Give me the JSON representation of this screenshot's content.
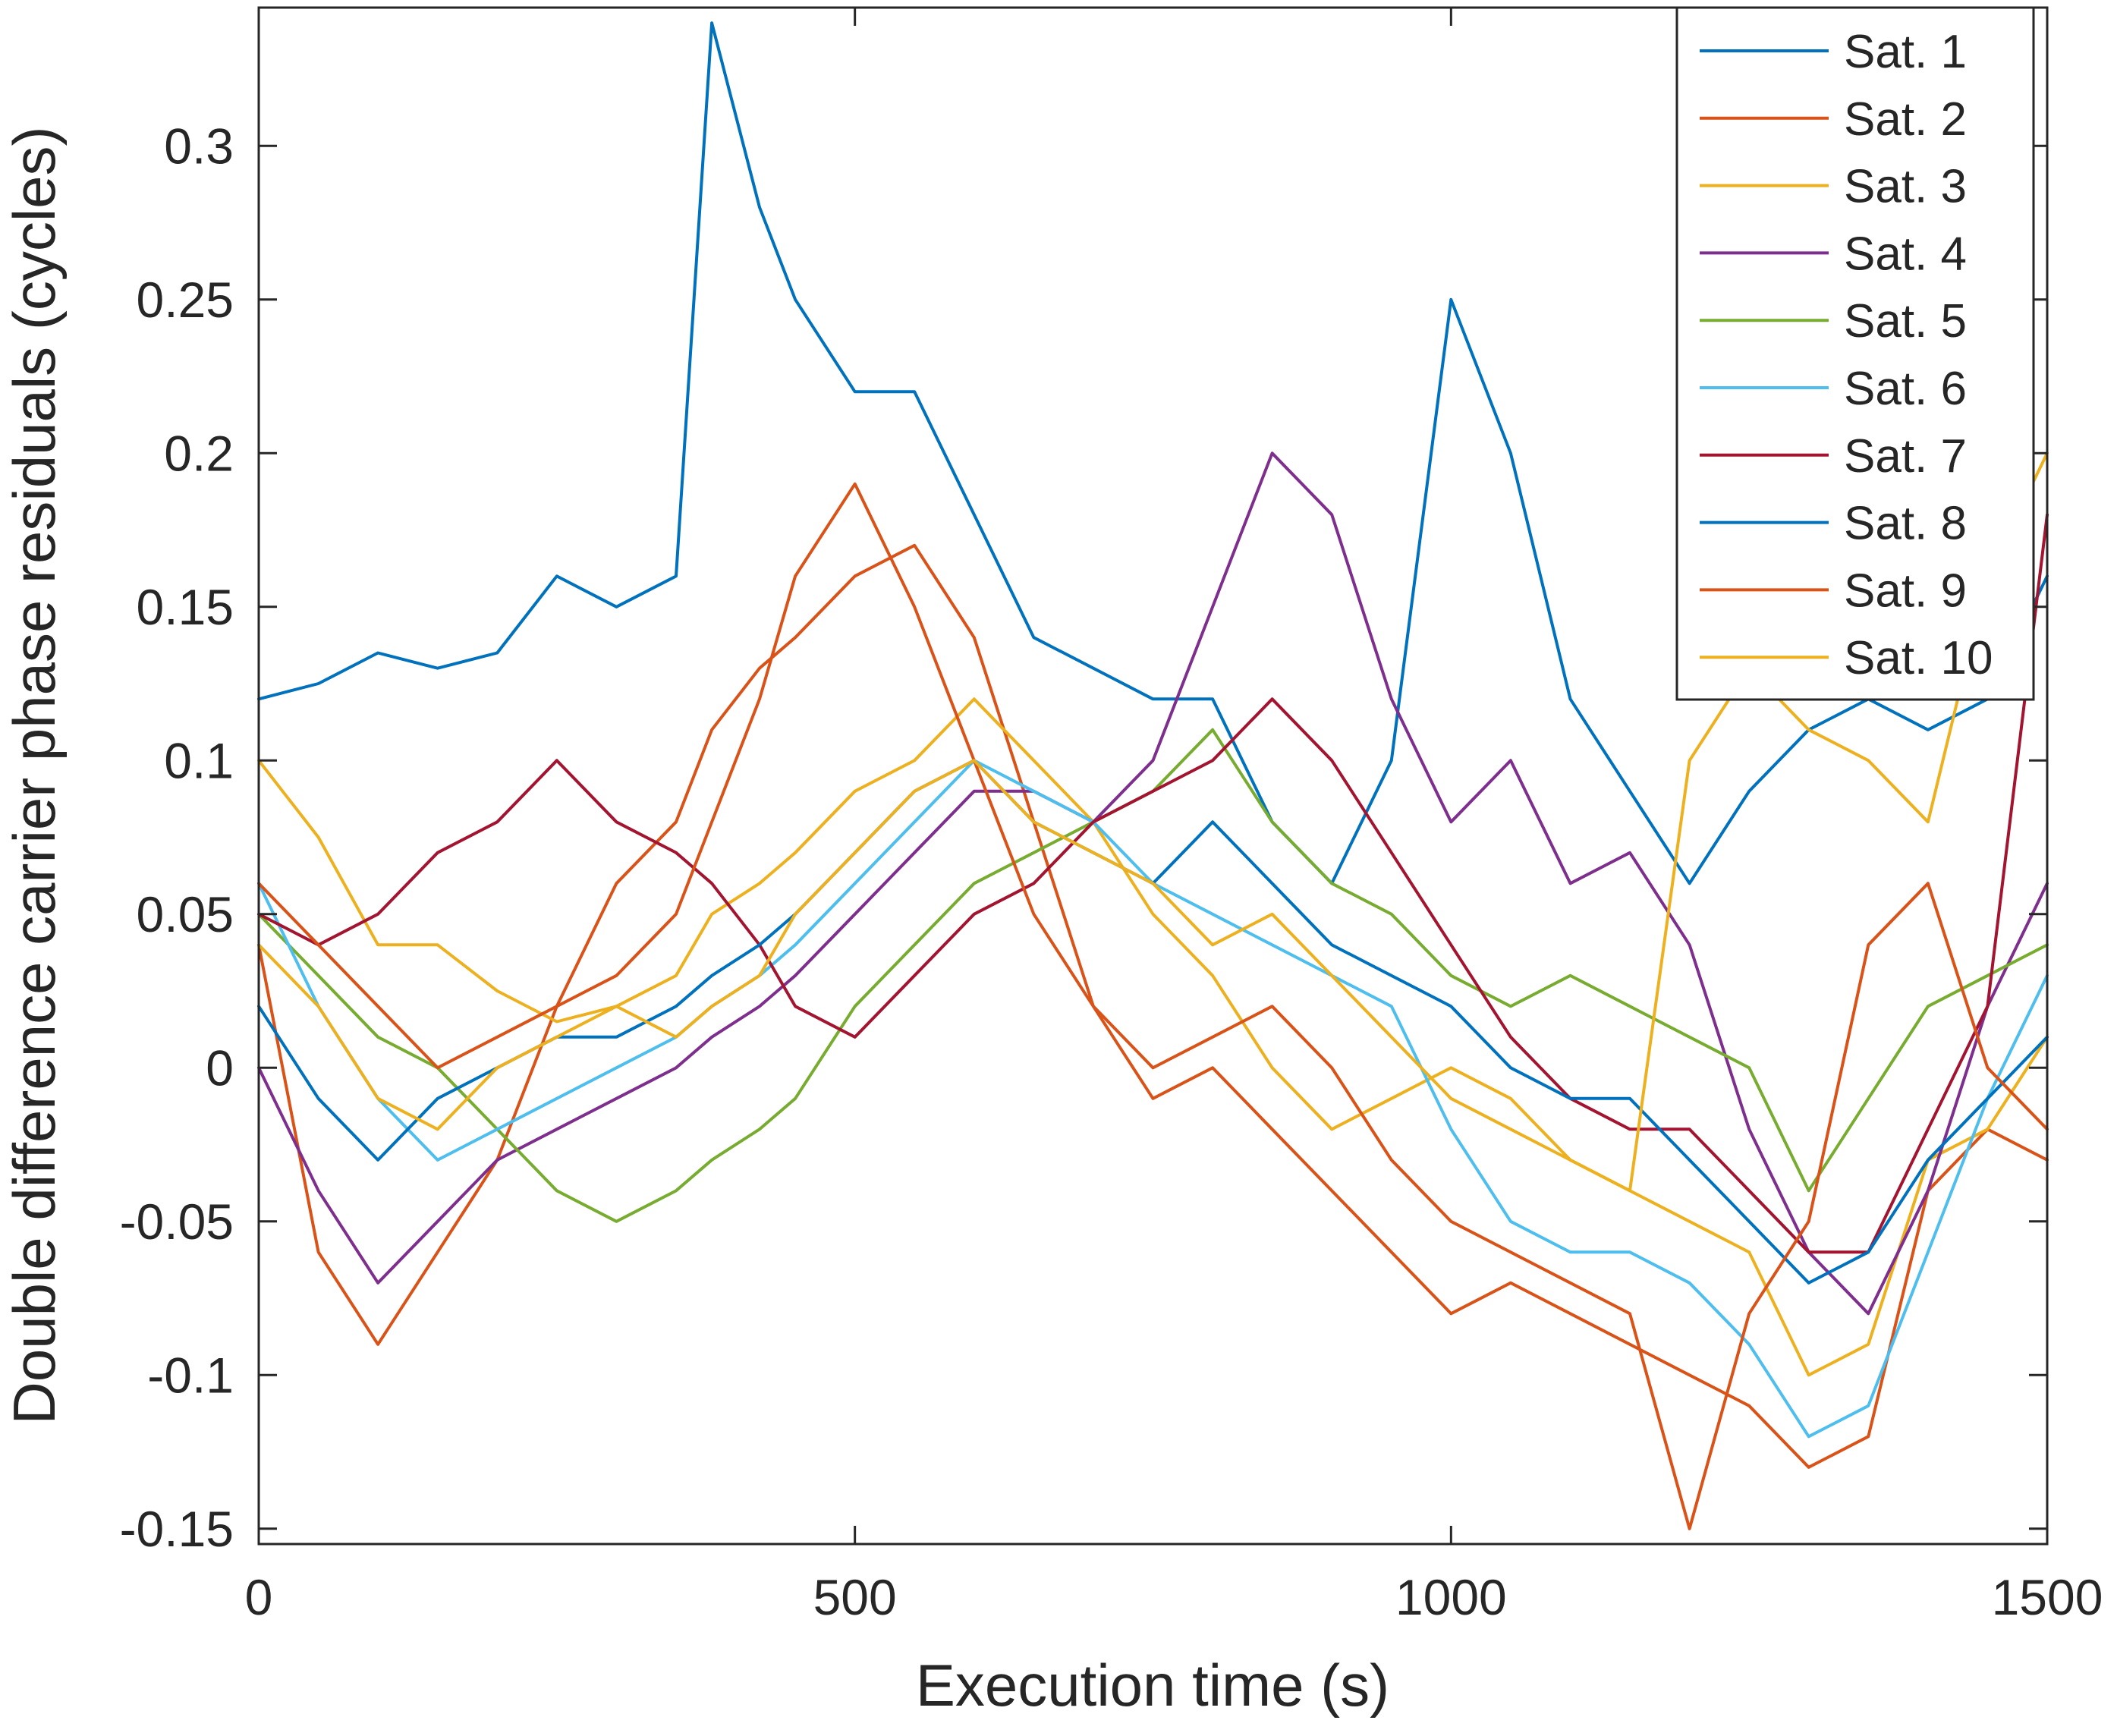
{
  "chart_data": {
    "type": "line",
    "title": "",
    "xlabel": "Execution time (s)",
    "ylabel": "Double difference carrier phase residuals (cycles)",
    "xlim": [
      0,
      1500
    ],
    "ylim": [
      -0.155,
      0.345
    ],
    "xticks": [
      0,
      500,
      1000,
      1500
    ],
    "xtick_labels": [
      "0",
      "500",
      "1000",
      "1500"
    ],
    "yticks": [
      -0.15,
      -0.1,
      -0.05,
      0,
      0.05,
      0.1,
      0.15,
      0.2,
      0.25,
      0.3
    ],
    "ytick_labels": [
      "-0.15",
      "-0.1",
      "-0.05",
      "0",
      "0.05",
      "0.1",
      "0.15",
      "0.2",
      "0.25",
      "0.3"
    ],
    "grid": false,
    "legend_position": "top-right",
    "x": [
      0,
      50,
      100,
      150,
      200,
      250,
      300,
      350,
      380,
      420,
      450,
      500,
      550,
      600,
      650,
      700,
      750,
      800,
      850,
      900,
      950,
      1000,
      1050,
      1100,
      1150,
      1200,
      1250,
      1300,
      1350,
      1400,
      1450,
      1500
    ],
    "series": [
      {
        "name": "Sat. 1",
        "color": "#0072BD",
        "values": [
          0.12,
          0.125,
          0.135,
          0.13,
          0.135,
          0.16,
          0.15,
          0.16,
          0.34,
          0.28,
          0.25,
          0.22,
          0.22,
          0.18,
          0.14,
          0.13,
          0.12,
          0.12,
          0.08,
          0.06,
          0.1,
          0.25,
          0.2,
          0.12,
          0.09,
          0.06,
          0.09,
          0.11,
          0.12,
          0.11,
          0.12,
          0.16
        ]
      },
      {
        "name": "Sat. 2",
        "color": "#D95319",
        "values": [
          0.04,
          -0.06,
          -0.09,
          -0.06,
          -0.03,
          0.02,
          0.06,
          0.08,
          0.11,
          0.13,
          0.14,
          0.16,
          0.17,
          0.14,
          0.08,
          0.02,
          -0.01,
          0.0,
          -0.02,
          -0.04,
          -0.06,
          -0.08,
          -0.07,
          -0.08,
          -0.09,
          -0.1,
          -0.11,
          -0.13,
          -0.12,
          -0.04,
          -0.02,
          -0.03
        ]
      },
      {
        "name": "Sat. 3",
        "color": "#EDB120",
        "values": [
          0.1,
          0.075,
          0.04,
          0.04,
          0.025,
          0.015,
          0.02,
          0.03,
          0.05,
          0.06,
          0.07,
          0.09,
          0.1,
          0.12,
          0.1,
          0.08,
          0.05,
          0.03,
          0.0,
          -0.02,
          -0.01,
          0.0,
          -0.01,
          -0.03,
          -0.04,
          -0.05,
          -0.06,
          -0.1,
          -0.09,
          -0.03,
          -0.02,
          0.01
        ]
      },
      {
        "name": "Sat. 4",
        "color": "#7E2F8E",
        "values": [
          0.0,
          -0.04,
          -0.07,
          -0.05,
          -0.03,
          -0.02,
          -0.01,
          0.0,
          0.01,
          0.02,
          0.03,
          0.05,
          0.07,
          0.09,
          0.09,
          0.08,
          0.1,
          0.15,
          0.2,
          0.18,
          0.12,
          0.08,
          0.1,
          0.06,
          0.07,
          0.04,
          -0.02,
          -0.06,
          -0.08,
          -0.04,
          0.02,
          0.06
        ]
      },
      {
        "name": "Sat. 5",
        "color": "#77AC30",
        "values": [
          0.05,
          0.03,
          0.01,
          0.0,
          -0.02,
          -0.04,
          -0.05,
          -0.04,
          -0.03,
          -0.02,
          -0.01,
          0.02,
          0.04,
          0.06,
          0.07,
          0.08,
          0.09,
          0.11,
          0.08,
          0.06,
          0.05,
          0.03,
          0.02,
          0.03,
          0.02,
          0.01,
          0.0,
          -0.04,
          -0.01,
          0.02,
          0.03,
          0.04
        ]
      },
      {
        "name": "Sat. 6",
        "color": "#4DBEEE",
        "values": [
          0.06,
          0.02,
          -0.01,
          -0.03,
          -0.02,
          -0.01,
          0.0,
          0.01,
          0.02,
          0.03,
          0.04,
          0.06,
          0.08,
          0.1,
          0.09,
          0.08,
          0.06,
          0.05,
          0.04,
          0.03,
          0.02,
          -0.02,
          -0.05,
          -0.06,
          -0.06,
          -0.07,
          -0.09,
          -0.12,
          -0.11,
          -0.06,
          -0.01,
          0.03
        ]
      },
      {
        "name": "Sat. 7",
        "color": "#A2142F",
        "values": [
          0.05,
          0.04,
          0.05,
          0.07,
          0.08,
          0.1,
          0.08,
          0.07,
          0.06,
          0.04,
          0.02,
          0.01,
          0.03,
          0.05,
          0.06,
          0.08,
          0.09,
          0.1,
          0.12,
          0.1,
          0.07,
          0.04,
          0.01,
          -0.01,
          -0.02,
          -0.02,
          -0.04,
          -0.06,
          -0.06,
          -0.02,
          0.02,
          0.18
        ]
      },
      {
        "name": "Sat. 8",
        "color": "#0072BD",
        "values": [
          0.02,
          -0.01,
          -0.03,
          -0.01,
          0.0,
          0.01,
          0.01,
          0.02,
          0.03,
          0.04,
          0.05,
          0.07,
          0.09,
          0.1,
          0.08,
          0.07,
          0.06,
          0.08,
          0.06,
          0.04,
          0.03,
          0.02,
          0.0,
          -0.01,
          -0.01,
          -0.03,
          -0.05,
          -0.07,
          -0.06,
          -0.03,
          -0.01,
          0.01
        ]
      },
      {
        "name": "Sat. 9",
        "color": "#D95319",
        "values": [
          0.06,
          0.04,
          0.02,
          0.0,
          0.01,
          0.02,
          0.03,
          0.05,
          0.08,
          0.12,
          0.16,
          0.19,
          0.15,
          0.1,
          0.05,
          0.02,
          0.0,
          0.01,
          0.02,
          0.0,
          -0.03,
          -0.05,
          -0.06,
          -0.07,
          -0.08,
          -0.15,
          -0.08,
          -0.05,
          0.04,
          0.06,
          0.0,
          -0.02
        ]
      },
      {
        "name": "Sat. 10",
        "color": "#EDB120",
        "values": [
          0.04,
          0.02,
          -0.01,
          -0.02,
          0.0,
          0.01,
          0.02,
          0.01,
          0.02,
          0.03,
          0.05,
          0.07,
          0.09,
          0.1,
          0.08,
          0.07,
          0.06,
          0.04,
          0.05,
          0.03,
          0.01,
          -0.01,
          -0.02,
          -0.03,
          -0.04,
          0.1,
          0.13,
          0.11,
          0.1,
          0.08,
          0.16,
          0.2
        ]
      }
    ]
  }
}
